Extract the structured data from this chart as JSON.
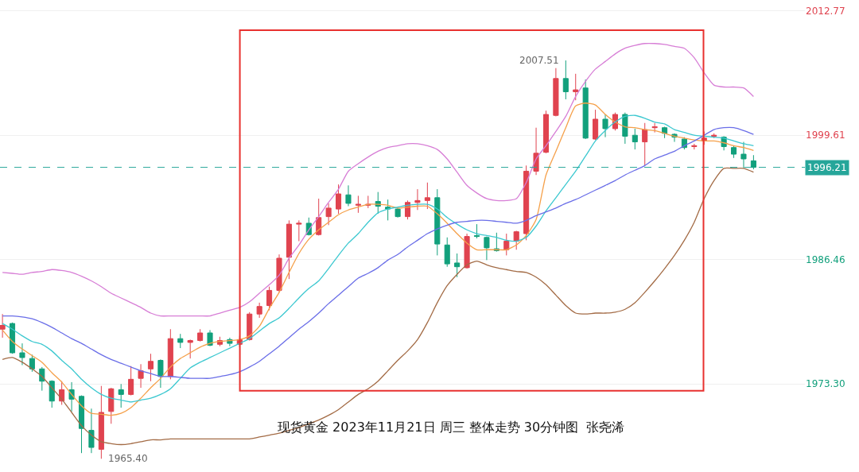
{
  "chart_data": {
    "type": "candlestick",
    "categories": [
      null,
      null,
      null,
      null,
      null,
      null,
      null,
      null,
      null,
      null,
      null,
      null,
      null,
      null,
      null,
      null,
      null,
      null,
      null,
      null,
      null,
      null,
      null,
      null,
      null,
      null,
      null,
      null,
      null,
      null,
      null,
      null,
      null,
      null,
      null,
      null,
      null,
      null,
      null,
      null,
      null,
      null,
      null,
      null,
      null,
      null,
      null,
      null,
      null,
      null,
      null,
      null,
      null,
      null,
      null,
      null,
      null,
      null,
      null,
      null,
      null,
      null,
      null,
      null,
      null,
      null,
      null,
      null,
      null,
      null,
      null,
      null,
      null,
      null,
      null,
      null,
      null
    ],
    "ohlc": [
      [
        1979.1,
        1980.7,
        1978.2,
        1979.5
      ],
      [
        1979.7,
        1979.8,
        1976.5,
        1976.6
      ],
      [
        1976.6,
        1977.6,
        1975.3,
        1976.1
      ],
      [
        1976.0,
        1976.4,
        1974.6,
        1974.9
      ],
      [
        1974.9,
        1975.1,
        1972.6,
        1973.6
      ],
      [
        1973.6,
        1973.7,
        1970.8,
        1971.5
      ],
      [
        1971.5,
        1973.6,
        1971.1,
        1972.7
      ],
      [
        1972.7,
        1973.5,
        1970.4,
        1971.7
      ],
      [
        1972.0,
        1972.1,
        1966.0,
        1968.6
      ],
      [
        1968.4,
        1970.7,
        1966.0,
        1966.6
      ],
      [
        1966.4,
        1973.1,
        1965.4,
        1970.3
      ],
      [
        1970.4,
        1972.9,
        1969.1,
        1972.8
      ],
      [
        1972.7,
        1973.3,
        1970.8,
        1972.2
      ],
      [
        1972.2,
        1975.2,
        1972.1,
        1973.8
      ],
      [
        1973.9,
        1975.4,
        1972.9,
        1974.7
      ],
      [
        1974.9,
        1976.5,
        1973.6,
        1975.7
      ],
      [
        1975.8,
        1975.9,
        1972.9,
        1974.1
      ],
      [
        1974.1,
        1979.1,
        1973.8,
        1978.1
      ],
      [
        1978.1,
        1978.6,
        1977.1,
        1977.7
      ],
      [
        1977.7,
        1978.0,
        1976.0,
        1977.9
      ],
      [
        1977.9,
        1979.1,
        1977.8,
        1978.7
      ],
      [
        1978.7,
        1979.0,
        1977.3,
        1977.4
      ],
      [
        1977.5,
        1978.3,
        1977.3,
        1977.9
      ],
      [
        1978.0,
        1978.2,
        1977.3,
        1977.6
      ],
      [
        1977.5,
        1978.4,
        1977.2,
        1978.0
      ],
      [
        1978.0,
        1980.9,
        1977.9,
        1980.7
      ],
      [
        1980.7,
        1981.9,
        1980.3,
        1981.5
      ],
      [
        1981.6,
        1983.6,
        1981.1,
        1983.2
      ],
      [
        1983.2,
        1987.0,
        1983.0,
        1986.6
      ],
      [
        1986.7,
        1990.6,
        1984.4,
        1990.2
      ],
      [
        1990.2,
        1990.6,
        1988.4,
        1990.3
      ],
      [
        1990.3,
        1990.9,
        1989.0,
        1989.1
      ],
      [
        1989.1,
        1992.9,
        1989.0,
        1990.9
      ],
      [
        1991.0,
        1992.4,
        1990.1,
        1991.9
      ],
      [
        1991.8,
        1994.4,
        1991.3,
        1993.4
      ],
      [
        1993.3,
        1994.3,
        1992.1,
        1992.4
      ],
      [
        1992.2,
        1993.2,
        1991.4,
        1992.3
      ],
      [
        1992.2,
        1993.2,
        1991.9,
        1992.3
      ],
      [
        1992.6,
        1993.6,
        1991.3,
        1992.1
      ],
      [
        1992.0,
        1992.8,
        1990.6,
        1991.8
      ],
      [
        1991.8,
        1991.9,
        1990.9,
        1991.0
      ],
      [
        1991.0,
        1992.7,
        1990.7,
        1992.5
      ],
      [
        1992.5,
        1993.9,
        1991.7,
        1992.7
      ],
      [
        1992.7,
        1994.6,
        1991.8,
        1993.0
      ],
      [
        1993.0,
        1993.9,
        1986.9,
        1988.1
      ],
      [
        1988.0,
        1988.8,
        1985.7,
        1986.0
      ],
      [
        1986.1,
        1987.1,
        1984.6,
        1985.7
      ],
      [
        1985.6,
        1989.2,
        1985.5,
        1988.9
      ],
      [
        1989.0,
        1990.2,
        1988.7,
        1988.9
      ],
      [
        1988.8,
        1988.9,
        1986.4,
        1987.7
      ],
      [
        1987.6,
        1989.3,
        1987.3,
        1987.4
      ],
      [
        1987.5,
        1989.2,
        1986.9,
        1988.4
      ],
      [
        1988.4,
        1989.5,
        1987.5,
        1989.4
      ],
      [
        1989.2,
        1996.4,
        1988.5,
        1995.8
      ],
      [
        1995.8,
        2000.4,
        1995.4,
        1997.7
      ],
      [
        1997.8,
        2002.2,
        1997.7,
        2001.8
      ],
      [
        2001.7,
        2006.7,
        2001.6,
        2005.6
      ],
      [
        2005.6,
        2007.51,
        2003.4,
        2004.2
      ],
      [
        2004.2,
        2006.1,
        2003.3,
        2004.4
      ],
      [
        2004.6,
        2005.5,
        1999.2,
        1999.3
      ],
      [
        1999.2,
        2002.3,
        1999.1,
        2001.3
      ],
      [
        2001.3,
        2001.8,
        1999.4,
        2000.3
      ],
      [
        2000.3,
        2002.0,
        2000.1,
        2001.8
      ],
      [
        2001.8,
        2002.0,
        1998.7,
        1999.5
      ],
      [
        1999.6,
        2000.3,
        1998.1,
        1998.9
      ],
      [
        1998.9,
        2000.9,
        1996.4,
        2000.2
      ],
      [
        2000.4,
        2000.9,
        1999.9,
        2000.5
      ],
      [
        2000.4,
        2000.5,
        1999.3,
        1999.8
      ],
      [
        1999.7,
        1999.8,
        1998.9,
        1999.4
      ],
      [
        1999.2,
        1999.4,
        1998.1,
        1998.3
      ],
      [
        1998.4,
        1998.7,
        1998.1,
        1998.5
      ],
      [
        1999.0,
        2000.0,
        1998.6,
        1999.3
      ],
      [
        1999.5,
        1999.8,
        1999.3,
        1999.6
      ],
      [
        1999.4,
        1999.5,
        1998.0,
        1998.4
      ],
      [
        1998.3,
        1998.5,
        1997.2,
        1997.6
      ],
      [
        1997.6,
        1998.9,
        1996.1,
        1997.1
      ],
      [
        1996.9,
        1997.5,
        1996.0,
        1996.21
      ]
    ],
    "series": [
      {
        "type": "line",
        "color": "#f5a04a",
        "values": [
          1979.0,
          1977.8,
          1977.0,
          1976.3,
          1975.6,
          1974.5,
          1973.5,
          1972.2,
          1971.0,
          1970.2,
          1970.1,
          1970.0,
          1970.2,
          1970.8,
          1971.8,
          1972.9,
          1973.9,
          1975.1,
          1976.0,
          1976.6,
          1977.2,
          1977.6,
          1977.8,
          1977.9,
          1978.0,
          1978.4,
          1979.4,
          1981.3,
          1983.0,
          1985.1,
          1987.1,
          1988.6,
          1989.6,
          1990.4,
          1991.2,
          1991.7,
          1992.0,
          1992.3,
          1992.3,
          1992.2,
          1991.9,
          1992.0,
          1992.1,
          1992.1,
          1991.3,
          1990.3,
          1989.2,
          1988.2,
          1987.5,
          1987.5,
          1987.5,
          1987.5,
          1988.0,
          1989.0,
          1990.7,
          1995.4,
          1997.9,
          2000.4,
          2002.7,
          2003.0,
          2002.8,
          2001.8,
          2001.0,
          2000.5,
          2000.4,
          2000.2,
          2000.1,
          1999.8,
          1999.5,
          1999.3,
          1999.1,
          1999.0,
          1999.0,
          1998.8,
          1998.5,
          1998.3,
          1998.0
        ]
      },
      {
        "type": "line",
        "color": "#3cc8d0",
        "values": [
          1979.7,
          1979.1,
          1978.4,
          1977.8,
          1977.5,
          1976.8,
          1975.8,
          1974.9,
          1973.8,
          1972.9,
          1972.2,
          1971.8,
          1971.6,
          1971.4,
          1971.6,
          1971.8,
          1972.2,
          1972.8,
          1973.9,
          1975.0,
          1975.6,
          1976.1,
          1976.6,
          1977.1,
          1977.6,
          1978.1,
          1978.9,
          1979.7,
          1980.3,
          1981.3,
          1982.4,
          1983.4,
          1984.2,
          1985.5,
          1986.9,
          1988.2,
          1989.2,
          1990.4,
          1991.4,
          1991.8,
          1992.0,
          1992.2,
          1992.3,
          1992.3,
          1991.8,
          1990.9,
          1990.2,
          1989.6,
          1989.2,
          1989.0,
          1988.8,
          1988.5,
          1988.4,
          1988.8,
          1990.0,
          1991.6,
          1993.0,
          1994.4,
          1995.8,
          1997.4,
          1999.0,
          2000.1,
          2001.0,
          2001.6,
          2001.7,
          2001.4,
          2001.0,
          2000.8,
          2000.2,
          1999.9,
          1999.6,
          1999.5,
          1999.4,
          1999.3,
          1999.0,
          1998.7,
          1998.5
        ]
      },
      {
        "type": "line",
        "color": "#6a6ee8",
        "values": [
          1980.5,
          1980.5,
          1980.4,
          1980.2,
          1979.8,
          1979.3,
          1978.7,
          1978.1,
          1977.6,
          1977.0,
          1976.4,
          1975.9,
          1975.5,
          1975.1,
          1974.7,
          1974.4,
          1974.1,
          1974.1,
          1974.0,
          1973.9,
          1973.9,
          1973.9,
          1974.1,
          1974.3,
          1974.6,
          1975.1,
          1975.7,
          1976.5,
          1977.3,
          1978.2,
          1979.1,
          1979.9,
          1980.8,
          1981.8,
          1982.7,
          1983.6,
          1984.5,
          1985.0,
          1985.6,
          1986.4,
          1987.0,
          1987.8,
          1988.5,
          1989.2,
          1989.7,
          1990.1,
          1990.4,
          1990.5,
          1990.6,
          1990.6,
          1990.5,
          1990.4,
          1990.3,
          1990.6,
          1991.1,
          1991.5,
          1991.9,
          1992.4,
          1992.8,
          1993.3,
          1993.8,
          1994.3,
          1994.8,
          1995.4,
          1995.9,
          1996.4,
          1997.1,
          1997.5,
          1997.9,
          1998.5,
          1999.0,
          1999.6,
          2000.2,
          2000.4,
          2000.4,
          2000.1,
          1999.7
        ]
      },
      {
        "type": "line",
        "color": "#d77ed6",
        "values": [
          1985.1,
          1985.0,
          1984.9,
          1985.1,
          1985.2,
          1985.4,
          1985.3,
          1985.1,
          1984.7,
          1984.2,
          1983.6,
          1982.9,
          1982.4,
          1981.9,
          1981.4,
          1980.8,
          1980.5,
          1980.5,
          1980.5,
          1980.5,
          1980.5,
          1980.5,
          1980.8,
          1981.1,
          1981.4,
          1982.0,
          1982.9,
          1983.8,
          1984.8,
          1986.6,
          1988.0,
          1989.6,
          1991.0,
          1992.5,
          1993.9,
          1995.8,
          1996.6,
          1997.3,
          1997.9,
          1998.3,
          1998.5,
          1998.7,
          1998.7,
          1998.5,
          1998.1,
          1997.1,
          1995.7,
          1994.3,
          1993.5,
          1992.9,
          1992.7,
          1992.7,
          1992.9,
          1994.6,
          1997.1,
          1998.5,
          2000.0,
          2001.6,
          2003.7,
          2005.3,
          2006.6,
          2007.4,
          2008.2,
          2008.8,
          2009.1,
          2009.3,
          2009.3,
          2009.2,
          2009.0,
          2008.8,
          2007.8,
          2006.2,
          2004.9,
          2004.7,
          2004.7,
          2004.6,
          2003.7
        ]
      },
      {
        "type": "line",
        "color": "#a36b45",
        "values": [
          1975.9,
          1976.1,
          1975.6,
          1974.9,
          1974.1,
          1972.9,
          1971.7,
          1970.3,
          1968.9,
          1967.9,
          1967.2,
          1967.0,
          1966.9,
          1967.0,
          1967.2,
          1967.4,
          1967.4,
          1967.5,
          1967.5,
          1967.5,
          1967.5,
          1967.5,
          1967.5,
          1967.5,
          1967.5,
          1967.5,
          1967.7,
          1967.9,
          1968.1,
          1968.4,
          1968.7,
          1969.1,
          1969.5,
          1970.0,
          1970.6,
          1971.4,
          1972.2,
          1972.8,
          1973.6,
          1974.7,
          1975.8,
          1976.8,
          1978.0,
          1979.8,
          1981.9,
          1983.7,
          1984.9,
          1985.9,
          1986.3,
          1985.9,
          1985.6,
          1985.4,
          1985.2,
          1985.1,
          1984.6,
          1983.8,
          1982.7,
          1981.6,
          1980.8,
          1980.7,
          1980.8,
          1980.8,
          1980.9,
          1981.2,
          1981.9,
          1983.0,
          1984.2,
          1985.5,
          1986.9,
          1988.5,
          1990.4,
          1992.9,
          1994.8,
          1996.1,
          1996.1,
          1996.1,
          1995.7
        ]
      }
    ],
    "ylim": [
      1964.0,
      2013.9
    ],
    "yticks": [
      2012.77,
      1999.61,
      1986.46,
      {
        "value": 1973.3,
        "label": "1973.30"
      }
    ],
    "grid": "y",
    "tick_labels": "y",
    "ref_lines": [
      {
        "axis": "y",
        "value": 1996.21,
        "label": "1996.21",
        "color": "#26a69a",
        "line_style": "dashed"
      }
    ],
    "annotations": [
      "2007.51",
      "1965.40",
      "现货黄金 2023年11月21日 周三 整体走势 30分钟图  张尧浠"
    ]
  }
}
